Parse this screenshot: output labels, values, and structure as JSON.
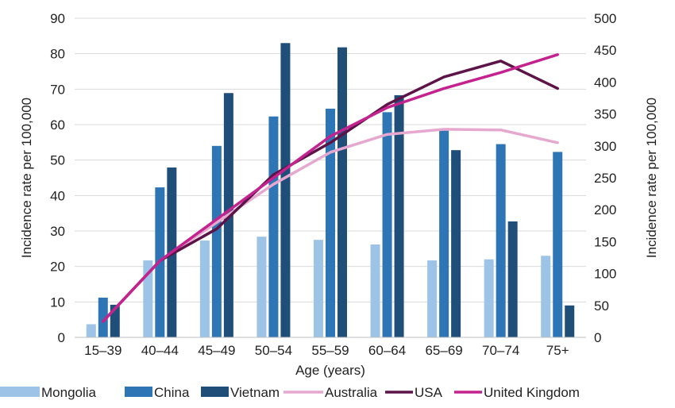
{
  "chart_data": {
    "type": "bar",
    "xlabel": "Age (years)",
    "ylabel_left": "Incidence rate per 100,000",
    "ylabel_right": "Incidence rate per 100,000",
    "categories": [
      "15–39",
      "40–44",
      "45–49",
      "50–54",
      "55–59",
      "60–64",
      "65–69",
      "70–74",
      "75+"
    ],
    "y_left": {
      "min": 0,
      "max": 90,
      "step": 10,
      "ticks": [
        "0",
        "10",
        "20",
        "30",
        "40",
        "50",
        "60",
        "70",
        "80",
        "90"
      ]
    },
    "y_right": {
      "min": 0,
      "max": 500,
      "step": 50,
      "ticks": [
        "0",
        "50",
        "100",
        "150",
        "200",
        "250",
        "300",
        "350",
        "400",
        "450",
        "500"
      ]
    },
    "grid": true,
    "legend_position": "bottom",
    "bar_series": [
      {
        "name": "Mongolia",
        "color": "#9dc3e6",
        "axis": "left",
        "values": [
          3.7,
          21.7,
          27.3,
          28.4,
          27.5,
          26.2,
          21.7,
          22.0,
          23.0
        ]
      },
      {
        "name": "China",
        "color": "#2e75b6",
        "axis": "left",
        "values": [
          11.2,
          42.3,
          54.0,
          62.3,
          64.5,
          63.5,
          58.3,
          54.5,
          52.3
        ]
      },
      {
        "name": "Vietnam",
        "color": "#1f4e79",
        "axis": "left",
        "values": [
          9.2,
          47.9,
          68.9,
          83.0,
          81.8,
          68.3,
          52.8,
          32.7,
          9.0
        ]
      }
    ],
    "line_series": [
      {
        "name": "Australia",
        "color": "#e6a8cf",
        "axis": "right",
        "values": [
          25,
          120,
          180,
          240,
          290,
          318,
          326,
          325,
          305
        ]
      },
      {
        "name": "USA",
        "color": "#5c1448",
        "axis": "right",
        "values": [
          25,
          120,
          170,
          255,
          305,
          365,
          408,
          433,
          390
        ]
      },
      {
        "name": "United Kingdom",
        "color": "#c4238f",
        "axis": "right",
        "values": [
          25,
          120,
          185,
          250,
          315,
          360,
          390,
          415,
          443
        ]
      }
    ]
  }
}
